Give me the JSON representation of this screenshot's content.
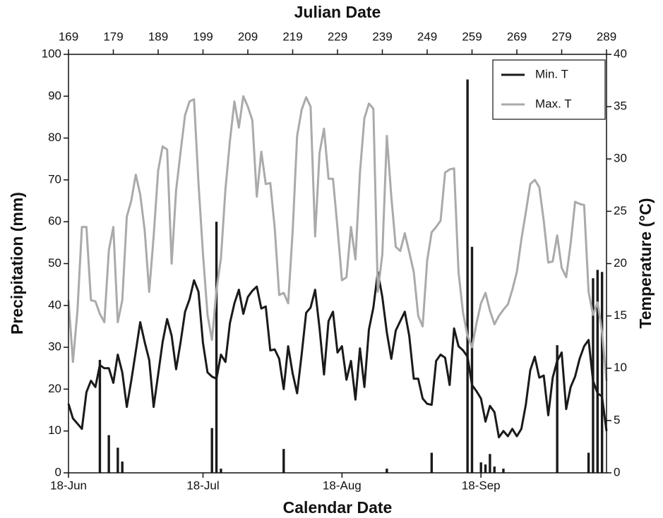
{
  "chart_data": {
    "type": "bar-line",
    "x_label": "Calendar Date",
    "x2_label": "Julian Date",
    "y_label": "Precipitation (mm)",
    "y2_label": "Temperature (°C)",
    "xlim": [
      169,
      289
    ],
    "xticks": [
      {
        "value": 169,
        "label": "18-Jun"
      },
      {
        "value": 199,
        "label": "18-Jul"
      },
      {
        "value": 230,
        "label": "18-Aug"
      },
      {
        "value": 261,
        "label": "18-Sep"
      }
    ],
    "x2ticks": [
      169,
      179,
      189,
      199,
      209,
      219,
      229,
      239,
      249,
      259,
      269,
      279,
      289
    ],
    "ylim": [
      0,
      100
    ],
    "yticks": [
      0,
      10,
      20,
      30,
      40,
      50,
      60,
      70,
      80,
      90,
      100
    ],
    "y2lim": [
      0,
      40
    ],
    "y2ticks": [
      0,
      5,
      10,
      15,
      20,
      25,
      30,
      35,
      40
    ],
    "legend": "upper right",
    "series": [
      {
        "type": "bar",
        "color": "#1a1a1a",
        "axis": "y",
        "x": [
          176,
          178,
          180,
          181,
          201,
          202,
          203,
          217,
          240,
          250,
          258,
          259,
          261,
          262,
          263,
          264,
          266,
          278,
          285,
          286,
          287,
          288
        ],
        "values": [
          27,
          9,
          6,
          2.7,
          10.7,
          60,
          1,
          5.7,
          1,
          4.8,
          94,
          54,
          2.5,
          2,
          4.5,
          1.5,
          1,
          30.5,
          4.8,
          46.5,
          48.5,
          48
        ]
      },
      {
        "name": "Min. T",
        "type": "line",
        "color": "#1a1a1a",
        "axis": "y2",
        "x": [
          169,
          170,
          171,
          172,
          173,
          174,
          175,
          176,
          177,
          178,
          179,
          180,
          181,
          182,
          183,
          184,
          185,
          186,
          187,
          188,
          189,
          190,
          191,
          192,
          193,
          194,
          195,
          196,
          197,
          198,
          199,
          200,
          201,
          202,
          203,
          204,
          205,
          206,
          207,
          208,
          209,
          210,
          211,
          212,
          213,
          214,
          215,
          216,
          217,
          218,
          219,
          220,
          221,
          222,
          223,
          224,
          225,
          226,
          227,
          228,
          229,
          230,
          231,
          232,
          233,
          234,
          235,
          236,
          237,
          238,
          239,
          240,
          241,
          242,
          243,
          244,
          245,
          246,
          247,
          248,
          249,
          250,
          251,
          252,
          253,
          254,
          255,
          256,
          257,
          258,
          259,
          260,
          261,
          262,
          263,
          264,
          265,
          266,
          267,
          268,
          269,
          270,
          271,
          272,
          273,
          274,
          275,
          276,
          277,
          278,
          279,
          280,
          281,
          282,
          283,
          284,
          285,
          286,
          287,
          288,
          289
        ],
        "values": [
          6.6,
          5.2,
          4.7,
          4.2,
          7.7,
          8.8,
          8.2,
          10.3,
          10,
          10,
          8.6,
          11.3,
          9.6,
          6.3,
          8.8,
          11.6,
          14.4,
          12.5,
          10.8,
          6.3,
          9.4,
          12.5,
          14.7,
          13.1,
          9.9,
          12.5,
          15.4,
          16.6,
          18.4,
          17.3,
          12.4,
          9.6,
          9.2,
          9,
          11.3,
          10.6,
          14.3,
          16.2,
          17.5,
          15.2,
          16.8,
          17.4,
          17.8,
          15.7,
          15.9,
          11.7,
          11.8,
          10.9,
          8,
          12.1,
          9.5,
          7.6,
          11.3,
          15.3,
          15.8,
          17.5,
          13.8,
          9.4,
          14.5,
          15.4,
          11.5,
          12.1,
          8.9,
          10.7,
          7,
          11.9,
          8.2,
          13.7,
          15.8,
          19.2,
          16.8,
          13.4,
          10.9,
          13.6,
          14.5,
          15.4,
          13.1,
          9,
          9,
          7.1,
          6.6,
          6.5,
          10.7,
          11.3,
          11,
          8.4,
          13.8,
          12.1,
          11.7,
          11.1,
          8.4,
          7.8,
          7.1,
          4.9,
          6.4,
          5.8,
          3.4,
          4,
          3.5,
          4.2,
          3.5,
          4.2,
          6.5,
          9.8,
          11.1,
          9.1,
          9.3,
          5.5,
          9.1,
          10.7,
          11.5,
          6.1,
          8.2,
          9.2,
          10.9,
          12.1,
          12.7,
          8.8,
          7.6,
          7.3,
          4
        ]
      },
      {
        "name": "Max. T",
        "type": "line",
        "color": "#aaaaaa",
        "axis": "y2",
        "x": [
          169,
          170,
          171,
          172,
          173,
          174,
          175,
          176,
          177,
          178,
          179,
          180,
          181,
          182,
          183,
          184,
          185,
          186,
          187,
          188,
          189,
          190,
          191,
          192,
          193,
          194,
          195,
          196,
          197,
          198,
          199,
          200,
          201,
          202,
          203,
          204,
          205,
          206,
          207,
          208,
          209,
          210,
          211,
          212,
          213,
          214,
          215,
          216,
          217,
          218,
          219,
          220,
          221,
          222,
          223,
          224,
          225,
          226,
          227,
          228,
          229,
          230,
          231,
          232,
          233,
          234,
          235,
          236,
          237,
          238,
          239,
          240,
          241,
          242,
          243,
          244,
          245,
          246,
          247,
          248,
          249,
          250,
          251,
          252,
          253,
          254,
          255,
          256,
          257,
          258,
          259,
          260,
          261,
          262,
          263,
          264,
          265,
          266,
          267,
          268,
          269,
          270,
          271,
          272,
          273,
          274,
          275,
          276,
          277,
          278,
          279,
          280,
          281,
          282,
          283,
          284,
          285,
          286,
          287,
          288,
          289
        ],
        "values": [
          16.5,
          10.6,
          15.5,
          23.5,
          23.5,
          16.5,
          16.4,
          15.2,
          14.4,
          21.3,
          23.5,
          14.4,
          16.5,
          24.5,
          26,
          28.5,
          26.6,
          23.2,
          17.3,
          22.6,
          28.9,
          31.2,
          30.9,
          20,
          27,
          30.7,
          34.2,
          35.5,
          35.7,
          27.7,
          20.9,
          15.1,
          12.7,
          17.5,
          20.5,
          27.1,
          31.7,
          35.5,
          33,
          36,
          35,
          33.7,
          26.4,
          30.7,
          27.6,
          27.7,
          23.4,
          17,
          17.2,
          16.2,
          23.1,
          32.2,
          34.7,
          35.9,
          35,
          22.6,
          30.6,
          32.9,
          28.1,
          28.1,
          23.4,
          18.4,
          18.7,
          23.5,
          20.4,
          28.7,
          33.9,
          35.3,
          34.8,
          17.3,
          20.9,
          32.2,
          26.4,
          21.6,
          21.2,
          22.9,
          21.1,
          19.2,
          15,
          14,
          20.3,
          23,
          23.5,
          24.1,
          28.7,
          29,
          29.1,
          19.2,
          15.3,
          13.1,
          12,
          14.3,
          16.2,
          17.2,
          15.5,
          14.2,
          15,
          15.6,
          16.1,
          17.5,
          19.2,
          22.3,
          24.9,
          27.6,
          28,
          27.3,
          24.1,
          20.1,
          20.2,
          22.7,
          19.6,
          18.7,
          21.9,
          25.9,
          25.7,
          25.6,
          17.3,
          15.1,
          16.3,
          13.5,
          8.8
        ]
      }
    ]
  }
}
